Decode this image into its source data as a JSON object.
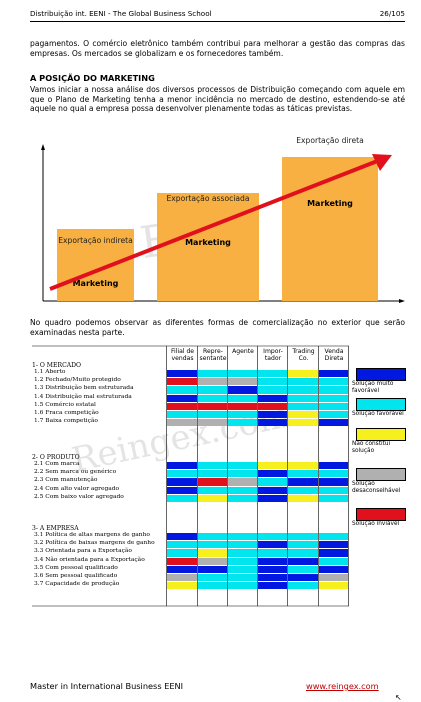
{
  "header": {
    "left": "Distribuição int.  EENI - The Global Business School",
    "right": "26/105"
  },
  "intro_text": "pagamentos. O comércio eletrônico também contribui para melhorar a gestão das compras das empresas. Os mercados se globalizam e os fornecedores também.",
  "section_title": "A POSIÇÃO DO MARKETING",
  "section_text": "Vamos iniciar a nossa análise dos diversos processos de Distribuição começando com aquele em que o Plano de Marketing tenha a menor incidência no mercado de destino, estendendo-se até aquele no qual a empresa possa desenvolver plenamente todas as táticas previstas.",
  "chart_data": {
    "type": "bar",
    "categories": [
      "Exportação indireta",
      "Exportação associada",
      "Exportação direta"
    ],
    "values": [
      2,
      3,
      4
    ],
    "ylim": [
      0,
      4.2
    ],
    "bar_text": [
      "Marketing",
      "Marketing",
      "Marketing"
    ],
    "colors": {
      "bar": "#f7b041",
      "arrow": "#e0101c"
    }
  },
  "chart_labels": {
    "b1": "Exportação indireta",
    "b2": "Exportação associada",
    "b3": "Exportação direta",
    "m": "Marketing"
  },
  "quadro_text": "No quadro podemos observar as diferentes formas de comercialização no exterior que serão examinadas nesta parte.",
  "table": {
    "columns": [
      "Filial de vendas",
      "Repre-sentante",
      "Agente",
      "Impor-tador",
      "Trading Co.",
      "Venda Direta"
    ],
    "sec1": "1- O MERCADO",
    "sec2": "2- O PRODUTO",
    "sec3": "3- A EMPRESA",
    "rows1": [
      "1.1 Aberto",
      "1.2 Fechado/Muito protegido",
      "1.3 Distribuição bem estruturada",
      "1.4 Distribuição mal estruturada",
      "1.5 Comércio estatal",
      "1.6 Fraca competição",
      "1.7 Baixa competição"
    ],
    "rows2": [
      "2.1 Com marca",
      "2.2 Sem marca ou genérico",
      "2.3 Com manutenção",
      "2.4 Com alto valor agregado",
      "2.5 Com baixo valor agregado"
    ],
    "rows3": [
      "3.1 Política de altas margens de ganho",
      "3.2 Política de baixas margens de ganho",
      "3.3 Orientada para a Exportação",
      "3.4 Não orientada para a Exportação",
      "3.5 Com pessoal qualificado",
      "3.6 Sem pessoal qualificado",
      "3.7 Capacidade de produção"
    ],
    "legend": [
      {
        "label": "Solução muito favorável",
        "color": "#0018e0"
      },
      {
        "label": "Solução favorável",
        "color": "#00e5ee"
      },
      {
        "label": "Não constitui solução",
        "color": "#f5f01e"
      },
      {
        "label": "Solução desaconselhável",
        "color": "#b0b0b0"
      },
      {
        "label": "Solução inviável",
        "color": "#e0101c"
      }
    ]
  },
  "footer": {
    "left": "Master in International Business EENI",
    "right": "www.reingex.com"
  }
}
